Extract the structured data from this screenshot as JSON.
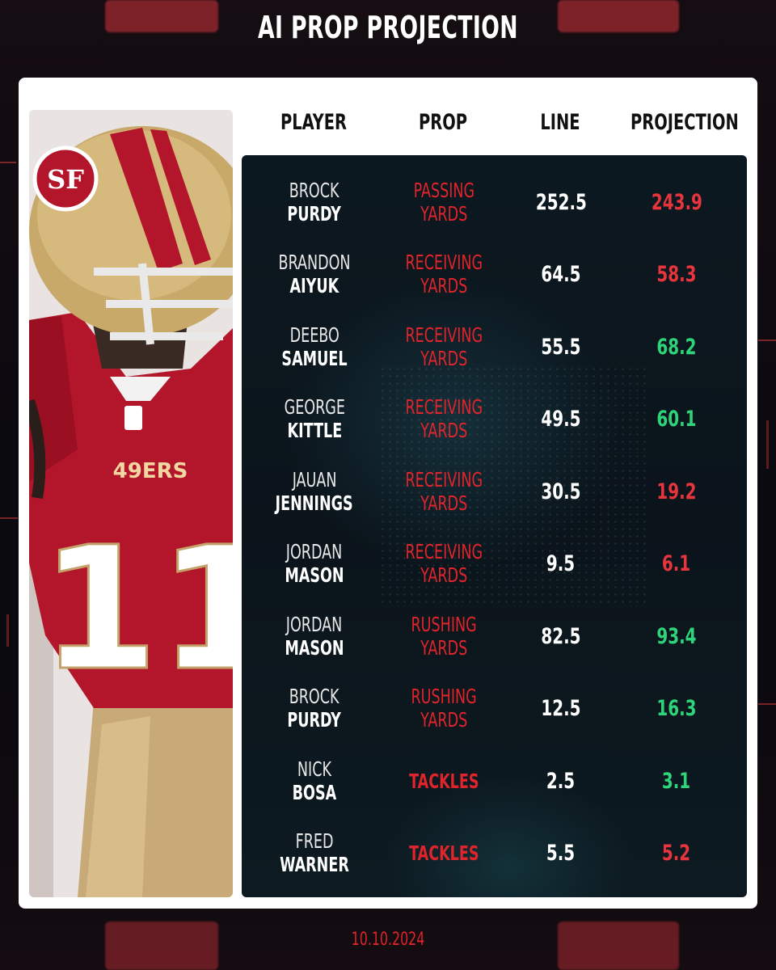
{
  "page": {
    "title": "AI PROP PROJECTION",
    "date": "10.10.2024"
  },
  "colors": {
    "accent_red": "#e0242b",
    "over_green": "#2ed47a",
    "under_red": "#e8343c",
    "panel": "#0b141b"
  },
  "photo": {
    "jersey_number": "11",
    "wordmark": "49ERS",
    "helmet_logo": "SF"
  },
  "table": {
    "headers": {
      "player": "PLAYER",
      "prop": "PROP",
      "line": "LINE",
      "projection": "PROJECTION"
    },
    "rows": [
      {
        "first": "BROCK",
        "last": "PURDY",
        "prop1": "PASSING",
        "prop2": "YARDS",
        "line": "252.5",
        "projection": "243.9",
        "status": "under"
      },
      {
        "first": "BRANDON",
        "last": "AIYUK",
        "prop1": "RECEIVING",
        "prop2": "YARDS",
        "line": "64.5",
        "projection": "58.3",
        "status": "under"
      },
      {
        "first": "DEEBO",
        "last": "SAMUEL",
        "prop1": "RECEIVING",
        "prop2": "YARDS",
        "line": "55.5",
        "projection": "68.2",
        "status": "over"
      },
      {
        "first": "GEORGE",
        "last": "KITTLE",
        "prop1": "RECEIVING",
        "prop2": "YARDS",
        "line": "49.5",
        "projection": "60.1",
        "status": "over"
      },
      {
        "first": "JAUAN",
        "last": "JENNINGS",
        "prop1": "RECEIVING",
        "prop2": "YARDS",
        "line": "30.5",
        "projection": "19.2",
        "status": "under"
      },
      {
        "first": "JORDAN",
        "last": "MASON",
        "prop1": "RECEIVING",
        "prop2": "YARDS",
        "line": "9.5",
        "projection": "6.1",
        "status": "under"
      },
      {
        "first": "JORDAN",
        "last": "MASON",
        "prop1": "RUSHING",
        "prop2": "YARDS",
        "line": "82.5",
        "projection": "93.4",
        "status": "over"
      },
      {
        "first": "BROCK",
        "last": "PURDY",
        "prop1": "RUSHING",
        "prop2": "YARDS",
        "line": "12.5",
        "projection": "16.3",
        "status": "over"
      },
      {
        "first": "NICK",
        "last": "BOSA",
        "prop1": "TACKLES",
        "prop2": "",
        "line": "2.5",
        "projection": "3.1",
        "status": "over"
      },
      {
        "first": "FRED",
        "last": "WARNER",
        "prop1": "TACKLES",
        "prop2": "",
        "line": "5.5",
        "projection": "5.2",
        "status": "under"
      }
    ]
  }
}
